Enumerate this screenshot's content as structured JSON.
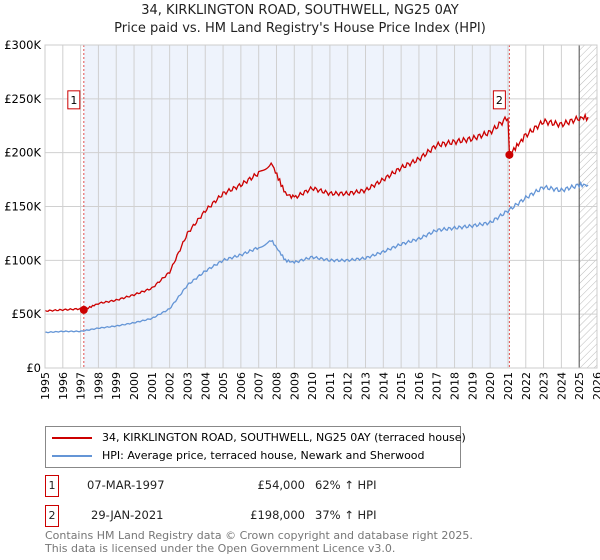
{
  "chart_data": {
    "type": "line",
    "title": "34, KIRKLINGTON ROAD, SOUTHWELL, NG25 0AY",
    "subtitle": "Price paid vs. HM Land Registry's House Price Index (HPI)",
    "xlim": [
      1995,
      2026
    ],
    "ylim": [
      0,
      300000
    ],
    "x_ticks": [
      "1995",
      "1996",
      "1997",
      "1998",
      "1999",
      "2000",
      "2001",
      "2002",
      "2003",
      "2004",
      "2005",
      "2006",
      "2007",
      "2008",
      "2009",
      "2010",
      "2011",
      "2012",
      "2013",
      "2014",
      "2015",
      "2016",
      "2017",
      "2018",
      "2019",
      "2020",
      "2021",
      "2022",
      "2023",
      "2024",
      "2025",
      "2026"
    ],
    "y_ticks": [
      {
        "v": 0,
        "label": "£0"
      },
      {
        "v": 50000,
        "label": "£50K"
      },
      {
        "v": 100000,
        "label": "£100K"
      },
      {
        "v": 150000,
        "label": "£150K"
      },
      {
        "v": 200000,
        "label": "£200K"
      },
      {
        "v": 250000,
        "label": "£250K"
      },
      {
        "v": 300000,
        "label": "£300K"
      }
    ],
    "grid": true,
    "series": [
      {
        "name": "34, KIRKLINGTON ROAD, SOUTHWELL, NG25 0AY (terraced house)",
        "color": "#cc0000",
        "x": [
          1995,
          1996,
          1997,
          1997.18,
          1998,
          1999,
          2000,
          2001,
          2002,
          2003,
          2004,
          2005,
          2006,
          2007,
          2007.7,
          2008.5,
          2009,
          2010,
          2011,
          2012,
          2013,
          2014,
          2015,
          2016,
          2017,
          2018,
          2019,
          2020,
          2021,
          2021.08,
          2022,
          2023,
          2024,
          2025,
          2025.5
        ],
        "y": [
          53000,
          54000,
          55000,
          54000,
          60000,
          63000,
          68000,
          74000,
          89000,
          125000,
          146000,
          162000,
          170000,
          181000,
          191000,
          162000,
          158000,
          167000,
          162000,
          162000,
          165000,
          175000,
          186000,
          194000,
          207000,
          210000,
          213000,
          219000,
          233000,
          198000,
          216000,
          229000,
          226000,
          232000,
          233000
        ]
      },
      {
        "name": "HPI: Average price, terraced house, Newark and Sherwood",
        "color": "#6495d6",
        "x": [
          1995,
          1996,
          1997,
          1998,
          1999,
          2000,
          2001,
          2002,
          2003,
          2004,
          2005,
          2006,
          2007,
          2007.7,
          2008.5,
          2009,
          2010,
          2011,
          2012,
          2013,
          2014,
          2015,
          2016,
          2017,
          2018,
          2019,
          2020,
          2021,
          2022,
          2023,
          2024,
          2025,
          2025.5
        ],
        "y": [
          33000,
          34000,
          34000,
          37000,
          39000,
          42000,
          46000,
          55000,
          77000,
          90000,
          100000,
          105000,
          112000,
          119000,
          100000,
          98000,
          103000,
          100000,
          100000,
          102000,
          108000,
          115000,
          120000,
          128000,
          130000,
          132000,
          135000,
          146000,
          158000,
          168000,
          165000,
          170000,
          170000
        ]
      }
    ],
    "sales": [
      {
        "n": "1",
        "x": 1997.18,
        "y": 54000,
        "date": "07-MAR-1997",
        "price": "£54,000",
        "hpi": "62% ↑ HPI"
      },
      {
        "n": "2",
        "x": 2021.08,
        "y": 198000,
        "date": "29-JAN-2021",
        "price": "£198,000",
        "hpi": "37% ↑ HPI"
      }
    ],
    "shaded_range": [
      1997.18,
      2021.08
    ],
    "hatched_from": 2025.0
  },
  "footer": {
    "line1": "Contains HM Land Registry data © Crown copyright and database right 2025.",
    "line2": "This data is licensed under the Open Government Licence v3.0."
  }
}
